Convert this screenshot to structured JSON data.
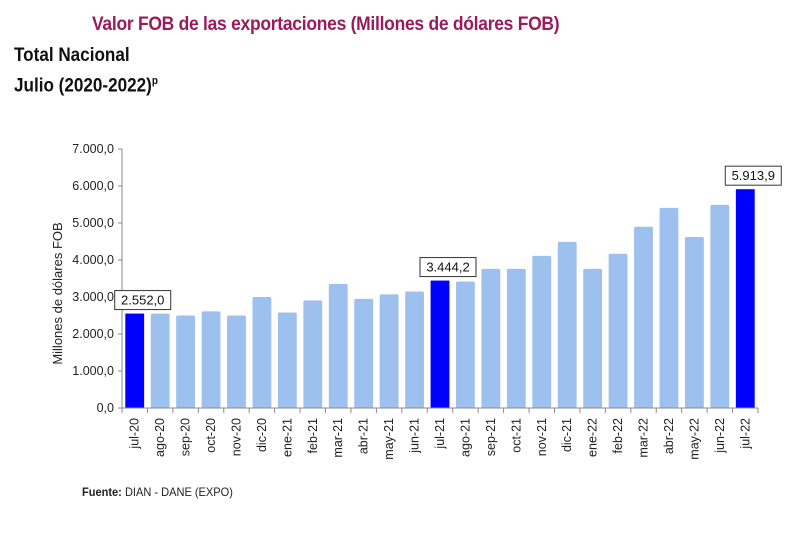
{
  "header": {
    "title": "Valor FOB de las exportaciones (Millones de dólares FOB)",
    "subtitle_1": "Total Nacional",
    "subtitle_2": "Julio (2020-2022)",
    "subtitle_2_sup": "p"
  },
  "footer": {
    "source_label": "Fuente:",
    "source_text": " DIAN  - DANE (EXPO)"
  },
  "colors": {
    "title": "#9c1a5c",
    "bar": "#9dc0ee",
    "bar_highlight": "#0000ff"
  },
  "chart_data": {
    "type": "bar",
    "title": "Valor FOB de las exportaciones (Millones de dólares FOB)",
    "xlabel": "",
    "ylabel": "Millones de dólares FOB",
    "ylim": [
      0,
      7000
    ],
    "yticks": [
      0,
      1000,
      2000,
      3000,
      4000,
      5000,
      6000,
      7000
    ],
    "ytick_labels": [
      "0,0",
      "1.000,0",
      "2.000,0",
      "3.000,0",
      "4.000,0",
      "5.000,0",
      "6.000,0",
      "7.000,0"
    ],
    "grid": false,
    "legend": "none",
    "categories": [
      "jul-20",
      "ago-20",
      "sep-20",
      "oct-20",
      "nov-20",
      "dic-20",
      "ene-21",
      "feb-21",
      "mar-21",
      "abr-21",
      "may-21",
      "jun-21",
      "jul-21",
      "ago-21",
      "sep-21",
      "oct-21",
      "nov-21",
      "dic-21",
      "ene-22",
      "feb-22",
      "mar-22",
      "abr-22",
      "may-22",
      "jun-22",
      "jul-22"
    ],
    "values": [
      2552.0,
      2550,
      2500,
      2610,
      2500,
      3000,
      2580,
      2910,
      3350,
      2950,
      3070,
      3150,
      3444.2,
      3420,
      3760,
      3760,
      4110,
      4490,
      3760,
      4170,
      4900,
      5410,
      4620,
      5490,
      5913.9
    ],
    "highlighted": [
      "jul-20",
      "jul-21",
      "jul-22"
    ],
    "data_labels": [
      {
        "category": "jul-20",
        "text": "2.552,0"
      },
      {
        "category": "jul-21",
        "text": "3.444,2"
      },
      {
        "category": "jul-22",
        "text": "5.913,9"
      }
    ]
  }
}
